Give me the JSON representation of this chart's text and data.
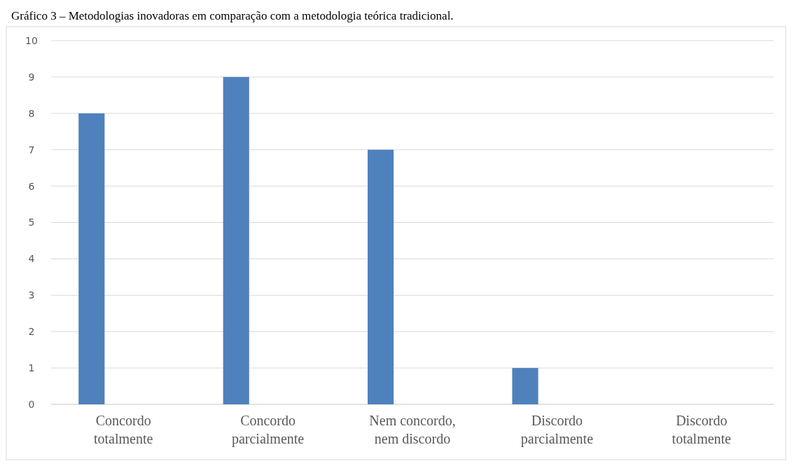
{
  "chart_data": {
    "type": "bar",
    "title": "Gráfico 3 – Metodologias inovadoras em comparação com a metodologia teórica tradicional.",
    "categories": [
      "Concordo totalmente",
      "Concordo parcialmente",
      "Nem concordo, nem discordo",
      "Discordo parcialmente",
      "Discordo totalmente"
    ],
    "values": [
      8,
      9,
      7,
      1,
      0
    ],
    "color": "#4f81bd",
    "ylim": [
      0,
      10
    ],
    "yticks": [
      0,
      1,
      2,
      3,
      4,
      5,
      6,
      7,
      8,
      9,
      10
    ],
    "grid": "y"
  }
}
